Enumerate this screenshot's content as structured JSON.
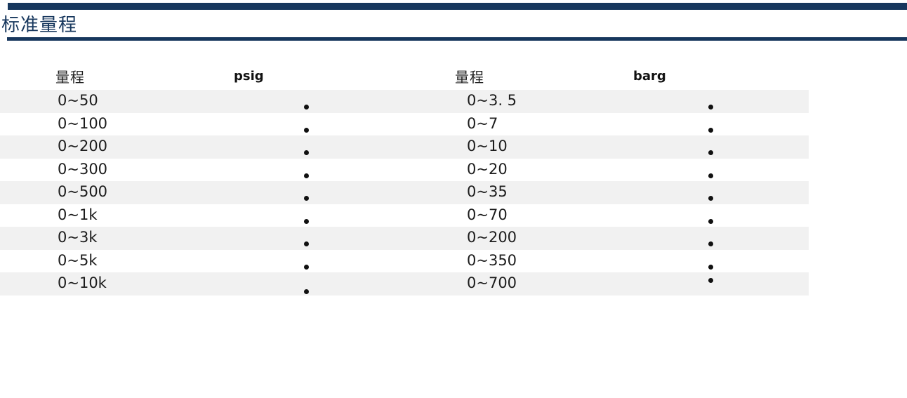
{
  "section": {
    "title": "标准量程"
  },
  "table": {
    "headers": [
      "量程",
      "psig",
      "量程",
      "barg"
    ],
    "rows": [
      {
        "psig_range": "0~50",
        "psig_marked": true,
        "barg_range": "0~3. 5",
        "barg_marked": true
      },
      {
        "psig_range": "0~100",
        "psig_marked": true,
        "barg_range": "0~7",
        "barg_marked": true
      },
      {
        "psig_range": "0~200",
        "psig_marked": true,
        "barg_range": "0~10",
        "barg_marked": true
      },
      {
        "psig_range": "0~300",
        "psig_marked": true,
        "barg_range": "0~20",
        "barg_marked": true
      },
      {
        "psig_range": "0~500",
        "psig_marked": true,
        "barg_range": "0~35",
        "barg_marked": true
      },
      {
        "psig_range": "0~1k",
        "psig_marked": true,
        "barg_range": "0~70",
        "barg_marked": true
      },
      {
        "psig_range": "0~3k",
        "psig_marked": true,
        "barg_range": "0~200",
        "barg_marked": true
      },
      {
        "psig_range": "0~5k",
        "psig_marked": true,
        "barg_range": "0~350",
        "barg_marked": true
      },
      {
        "psig_range": "0~10k",
        "psig_marked": true,
        "barg_range": "0~700",
        "barg_marked": true
      }
    ]
  },
  "colors": {
    "accent_navy": "#17375d",
    "stripe_gray": "#f1f1f1",
    "text_black": "#1a1a1a"
  }
}
